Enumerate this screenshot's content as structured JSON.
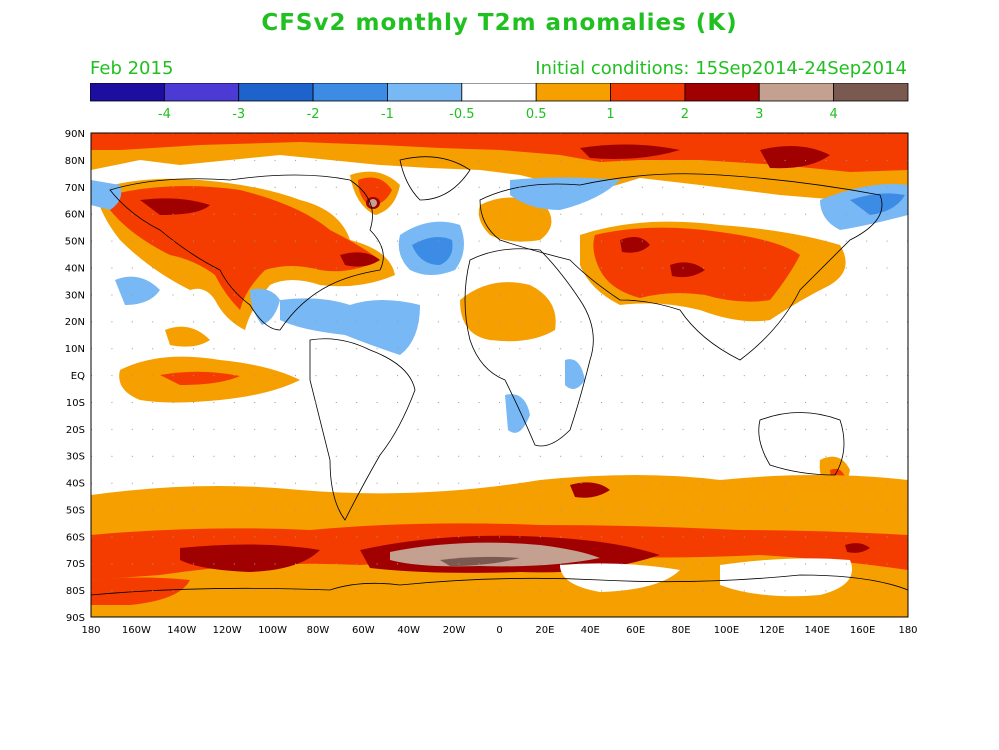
{
  "title": "CFSv2 monthly T2m anomalies (K)",
  "valid_month": "Feb 2015",
  "initial_conditions": "Initial conditions: 15Sep2014-24Sep2014",
  "colorbar": {
    "colors": [
      "#1e0ea0",
      "#4b3bd4",
      "#1e63cc",
      "#3c8ce6",
      "#78b8f5",
      "#ffffff",
      "#f5a000",
      "#f53c00",
      "#a00000",
      "#c4a090",
      "#7a5a50"
    ],
    "labels": [
      "-4",
      "-3",
      "-2",
      "-1",
      "-0.5",
      "0.5",
      "1",
      "2",
      "3",
      "4"
    ]
  },
  "map": {
    "lat_labels": [
      "90N",
      "80N",
      "70N",
      "60N",
      "50N",
      "40N",
      "30N",
      "20N",
      "10N",
      "EQ",
      "10S",
      "20S",
      "30S",
      "40S",
      "50S",
      "60S",
      "70S",
      "80S",
      "90S"
    ],
    "lon_labels": [
      "180",
      "160W",
      "140W",
      "120W",
      "100W",
      "80W",
      "60W",
      "40W",
      "20W",
      "0",
      "20E",
      "40E",
      "60E",
      "80E",
      "100E",
      "120E",
      "140E",
      "160E",
      "180"
    ],
    "label_color": "#000000"
  }
}
